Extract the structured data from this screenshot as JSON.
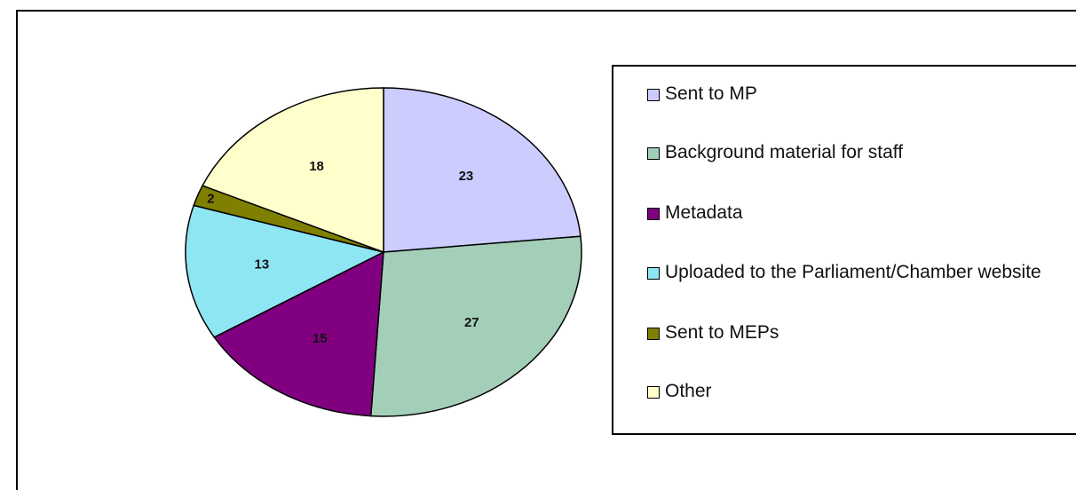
{
  "chart_data": {
    "type": "pie",
    "slices": [
      {
        "label": "Sent to MP",
        "value": 23,
        "color": "#ccccff"
      },
      {
        "label": "Background material for staff",
        "value": 27,
        "color": "#a3cfb9"
      },
      {
        "label": "Metadata",
        "value": 15,
        "color": "#800080"
      },
      {
        "label": "Uploaded to the Parliament/Chamber website",
        "value": 13,
        "color": "#8fe6f3"
      },
      {
        "label": "Sent to MEPs",
        "value": 2,
        "color": "#808000"
      },
      {
        "label": "Other",
        "value": 18,
        "color": "#ffffcc"
      }
    ],
    "start_angle_deg": 90,
    "direction": "clockwise",
    "legend_position": "right"
  }
}
